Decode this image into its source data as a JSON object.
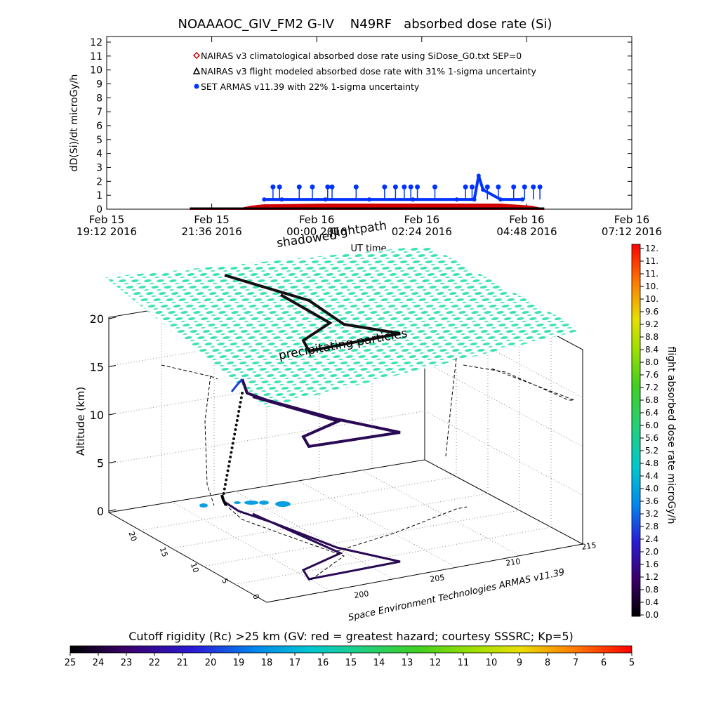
{
  "title": "NOAAAOC_GIV_FM2 G-IV    N49RF   absorbed dose rate (Si)",
  "chart_data": [
    {
      "type": "line",
      "panel": "dose-rate-time-series",
      "ylabel": "dD(Si)/dt microGy/h",
      "xlabel": "UT time",
      "ylim": [
        0,
        12
      ],
      "yticks": [
        "0",
        "1",
        "2",
        "3",
        "4",
        "5",
        "6",
        "7",
        "8",
        "9",
        "10",
        "11",
        "12"
      ],
      "xticks": [
        {
          "top": "Feb 15",
          "bottom": "19:12 2016",
          "x": 0
        },
        {
          "top": "Feb 15",
          "bottom": "21:36 2016",
          "x": 2.4
        },
        {
          "top": "Feb 16",
          "bottom": "00:00 2016",
          "x": 4.8
        },
        {
          "top": "Feb 16",
          "bottom": "02:24 2016",
          "x": 7.2
        },
        {
          "top": "Feb 16",
          "bottom": "04:48 2016",
          "x": 9.6
        },
        {
          "top": "Feb 16",
          "bottom": "07:12 2016",
          "x": 12.0
        }
      ],
      "xlim": [
        0,
        12
      ],
      "legend": [
        {
          "label": "NAIRAS v3 climatological absorbed dose rate using SiDose_G0.txt SEP=0",
          "color": "#cc0000",
          "marker": "diamond"
        },
        {
          "label": "NAIRAS v3 flight modeled absorbed dose rate with 31% 1-sigma uncertainty",
          "color": "#000000",
          "marker": "triangle"
        },
        {
          "label": "SET ARMAS v11.39 with 22% 1-sigma uncertainty",
          "color": "#0033ff",
          "marker": "dot"
        }
      ],
      "series": [
        {
          "name": "NAIRAS v3 climatological absorbed dose rate using SiDose_G0.txt SEP=0",
          "x": [
            1.9,
            3.0,
            3.3,
            3.6,
            5.0,
            7.0,
            9.0,
            9.7,
            10.0
          ],
          "y": [
            0.0,
            0.0,
            0.2,
            0.3,
            0.35,
            0.35,
            0.35,
            0.2,
            0.0
          ]
        },
        {
          "name": "NAIRAS v3 flight modeled absorbed dose rate with 31% 1-sigma uncertainty",
          "x": [
            1.9,
            3.0,
            9.7,
            10.0
          ],
          "y": [
            0.0,
            0.0,
            0.0,
            0.0
          ]
        },
        {
          "name": "SET ARMAS v11.39 with 22% 1-sigma uncertainty",
          "x": [
            3.6,
            4.0,
            5.0,
            6.0,
            7.0,
            8.0,
            8.4,
            8.5,
            8.6,
            9.0,
            9.5
          ],
          "y": [
            0.7,
            0.7,
            0.7,
            0.7,
            0.7,
            0.7,
            0.7,
            2.4,
            1.4,
            0.7,
            0.7
          ],
          "spikes": [
            {
              "x": 3.8,
              "y": 1.6
            },
            {
              "x": 3.95,
              "y": 1.6
            },
            {
              "x": 4.4,
              "y": 1.6
            },
            {
              "x": 4.7,
              "y": 1.6
            },
            {
              "x": 5.05,
              "y": 1.6
            },
            {
              "x": 5.15,
              "y": 1.6
            },
            {
              "x": 5.7,
              "y": 1.6
            },
            {
              "x": 6.35,
              "y": 1.6
            },
            {
              "x": 6.6,
              "y": 1.6
            },
            {
              "x": 6.8,
              "y": 1.6
            },
            {
              "x": 6.95,
              "y": 1.6
            },
            {
              "x": 7.1,
              "y": 1.6
            },
            {
              "x": 7.5,
              "y": 1.6
            },
            {
              "x": 8.2,
              "y": 1.6
            },
            {
              "x": 8.35,
              "y": 1.6
            },
            {
              "x": 8.7,
              "y": 1.6
            },
            {
              "x": 8.95,
              "y": 1.6
            },
            {
              "x": 9.3,
              "y": 1.6
            },
            {
              "x": 9.55,
              "y": 1.6
            },
            {
              "x": 9.75,
              "y": 1.6
            },
            {
              "x": 9.9,
              "y": 1.6
            }
          ]
        }
      ]
    },
    {
      "type": "scatter",
      "panel": "3d-flight-path",
      "zlabel": "Altitude (km)",
      "zticks": [
        "0",
        "5",
        "10",
        "15",
        "20"
      ],
      "zlim": [
        0,
        20
      ],
      "xticks": [
        "200",
        "205",
        "210",
        "215"
      ],
      "yticks": [
        "0",
        "5",
        "10",
        "15",
        "20"
      ],
      "annotations": [
        "shadowed",
        "flightpath",
        "precipitating particles"
      ],
      "credit": "Space Environment Technologies ARMAS v11.39",
      "flightpath_color": "#2a0a55",
      "plane_color": "#33e0b0"
    }
  ],
  "dose_colorbar": {
    "label": "flight absorbed dose rate microGy/h",
    "ticks": [
      "12.",
      "11.",
      "11.",
      "10.",
      "10.",
      "9.6",
      "9.2",
      "8.8",
      "8.4",
      "8.0",
      "7.6",
      "7.2",
      "6.8",
      "6.4",
      "6.0",
      "5.6",
      "5.2",
      "4.8",
      "4.4",
      "4.0",
      "3.6",
      "3.2",
      "2.8",
      "2.4",
      "2.0",
      "1.6",
      "1.2",
      "0.8",
      "0.4",
      "0.0"
    ]
  },
  "rigidity_colorbar": {
    "label": "Cutoff rigidity (Rc) >25 km (GV: red = greatest hazard; courtesy SSSRC; Kp=5)",
    "ticks": [
      "25",
      "24",
      "23",
      "22",
      "21",
      "20",
      "19",
      "18",
      "17",
      "16",
      "15",
      "14",
      "13",
      "12",
      "11",
      "10",
      "9",
      "8",
      "7",
      "6",
      "5"
    ]
  }
}
